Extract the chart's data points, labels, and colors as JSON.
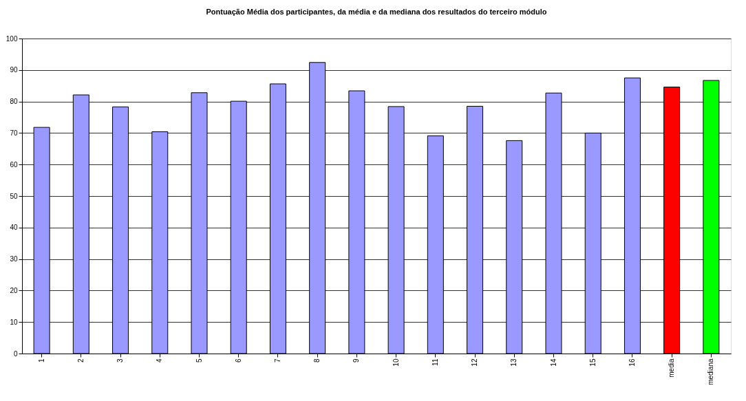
{
  "chart_data": {
    "type": "bar",
    "title": "Pontuação Média dos participantes, da média e da mediana dos resultados do terceiro módulo",
    "categories": [
      "1",
      "2",
      "3",
      "4",
      "5",
      "6",
      "7",
      "8",
      "9",
      "10",
      "11",
      "12",
      "13",
      "14",
      "15",
      "16",
      "media",
      "mediana"
    ],
    "values": [
      71.8,
      82.1,
      78.3,
      70.4,
      82.8,
      80.1,
      85.6,
      92.4,
      83.4,
      78.4,
      69.1,
      78.5,
      67.6,
      82.7,
      70.0,
      87.5,
      84.6,
      86.7
    ],
    "colors": [
      "#9999ff",
      "#9999ff",
      "#9999ff",
      "#9999ff",
      "#9999ff",
      "#9999ff",
      "#9999ff",
      "#9999ff",
      "#9999ff",
      "#9999ff",
      "#9999ff",
      "#9999ff",
      "#9999ff",
      "#9999ff",
      "#9999ff",
      "#9999ff",
      "#ff0000",
      "#00ff00"
    ],
    "ylim": [
      0,
      100
    ],
    "yticks": [
      0,
      10,
      20,
      30,
      40,
      50,
      60,
      70,
      80,
      90,
      100
    ],
    "grid": "y"
  }
}
